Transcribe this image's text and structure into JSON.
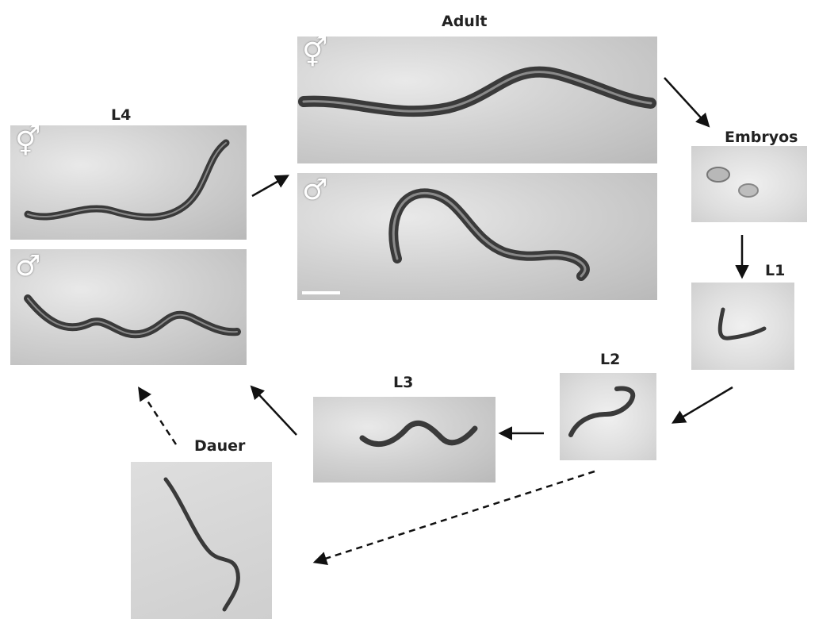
{
  "stages": {
    "adult": "Adult",
    "embryos": "Embryos",
    "l1": "L1",
    "l2": "L2",
    "l3": "L3",
    "l4": "L4",
    "dauer": "Dauer"
  },
  "sex_symbols": {
    "hermaphrodite": "⚥",
    "male": "♂"
  },
  "colors": {
    "arrow": "#111111",
    "label_text": "#222222",
    "worm_body": "#3a3a3a"
  }
}
